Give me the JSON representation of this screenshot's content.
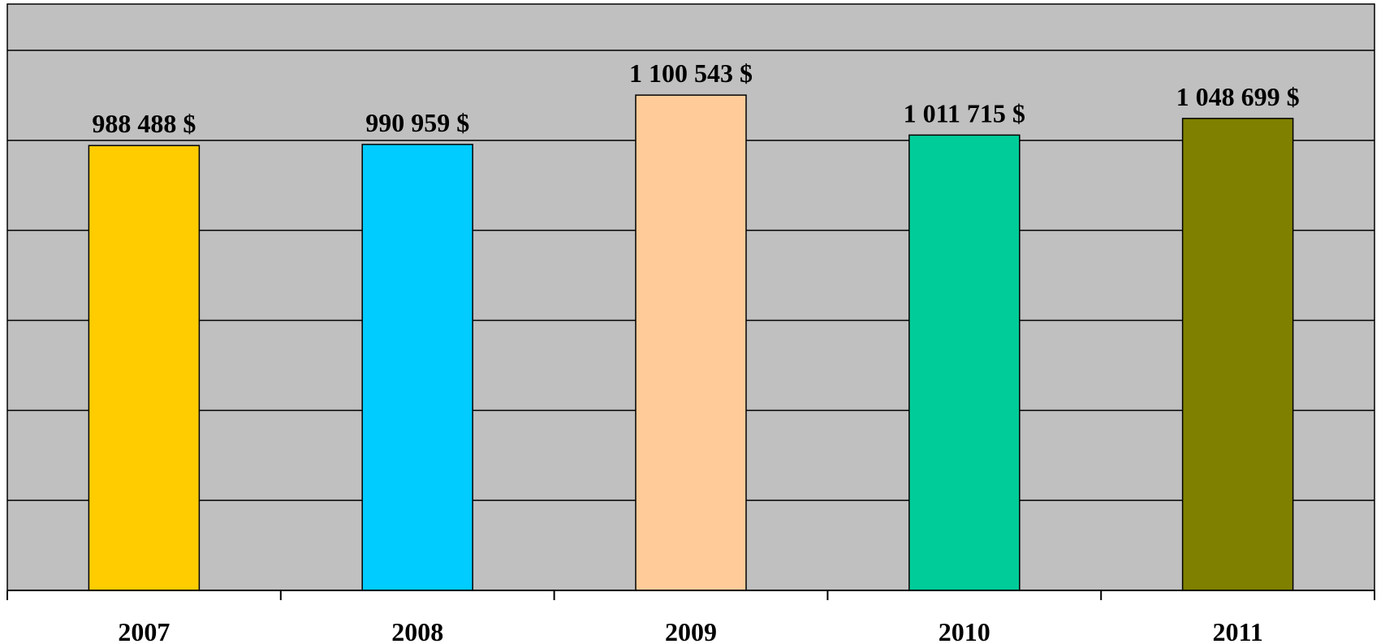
{
  "chart_data": {
    "type": "bar",
    "title": "",
    "xlabel": "",
    "ylabel": "",
    "categories": [
      "2007",
      "2008",
      "2009",
      "2010",
      "2011"
    ],
    "values": [
      988488,
      990959,
      1100543,
      1011715,
      1048699
    ],
    "data_labels": [
      "988 488 $",
      "990 959 $",
      "1 100 543 $",
      "1 011 715 $",
      "1 048 699 $"
    ],
    "bar_colors": [
      "#FFCC00",
      "#00CCFF",
      "#FFCC99",
      "#00CC99",
      "#808000"
    ],
    "ylim": [
      0,
      1200000
    ],
    "y_gridline_step": 200000,
    "grid": true,
    "y_tick_labels_visible": false,
    "legend": "none",
    "plot_background": "#C0C0C0"
  }
}
